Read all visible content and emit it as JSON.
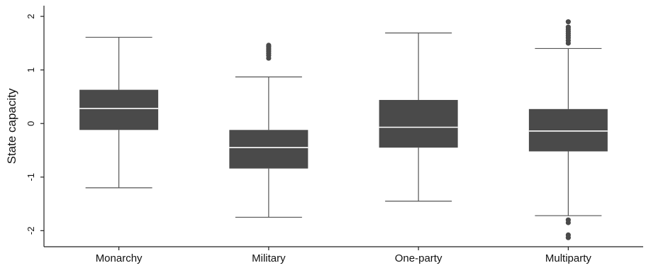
{
  "chart_data": {
    "type": "boxplot",
    "title": "",
    "xlabel": "",
    "ylabel": "State capacity",
    "ylim": [
      -2.3,
      2.2
    ],
    "yticks": [
      -2,
      -1,
      0,
      1,
      2
    ],
    "ytick_labels": [
      "-2",
      "-1",
      "0",
      "1",
      "2"
    ],
    "grid": false,
    "colors": {
      "box": "#4a4a4a",
      "median": "#ffffff",
      "whisker": "#555555",
      "outlier": "#4a4a4a",
      "axis": "#222222"
    },
    "categories": [
      "Monarchy",
      "Military",
      "One-party",
      "Multiparty"
    ],
    "boxes": [
      {
        "category": "Monarchy",
        "whisker_low": -1.2,
        "q1": -0.12,
        "median": 0.28,
        "q3": 0.63,
        "whisker_high": 1.61,
        "outliers": []
      },
      {
        "category": "Military",
        "whisker_low": -1.75,
        "q1": -0.84,
        "median": -0.45,
        "q3": -0.12,
        "whisker_high": 0.87,
        "outliers": [
          1.22,
          1.27,
          1.31,
          1.35,
          1.39,
          1.43,
          1.46
        ]
      },
      {
        "category": "One-party",
        "whisker_low": -1.45,
        "q1": -0.45,
        "median": -0.07,
        "q3": 0.44,
        "whisker_high": 1.69,
        "outliers": []
      },
      {
        "category": "Multiparty",
        "whisker_low": -1.72,
        "q1": -0.52,
        "median": -0.14,
        "q3": 0.27,
        "whisker_high": 1.4,
        "outliers": [
          1.5,
          1.55,
          1.6,
          1.64,
          1.68,
          1.72,
          1.76,
          1.8,
          1.9,
          -1.8,
          -1.85,
          -2.08,
          -2.13
        ]
      }
    ]
  }
}
